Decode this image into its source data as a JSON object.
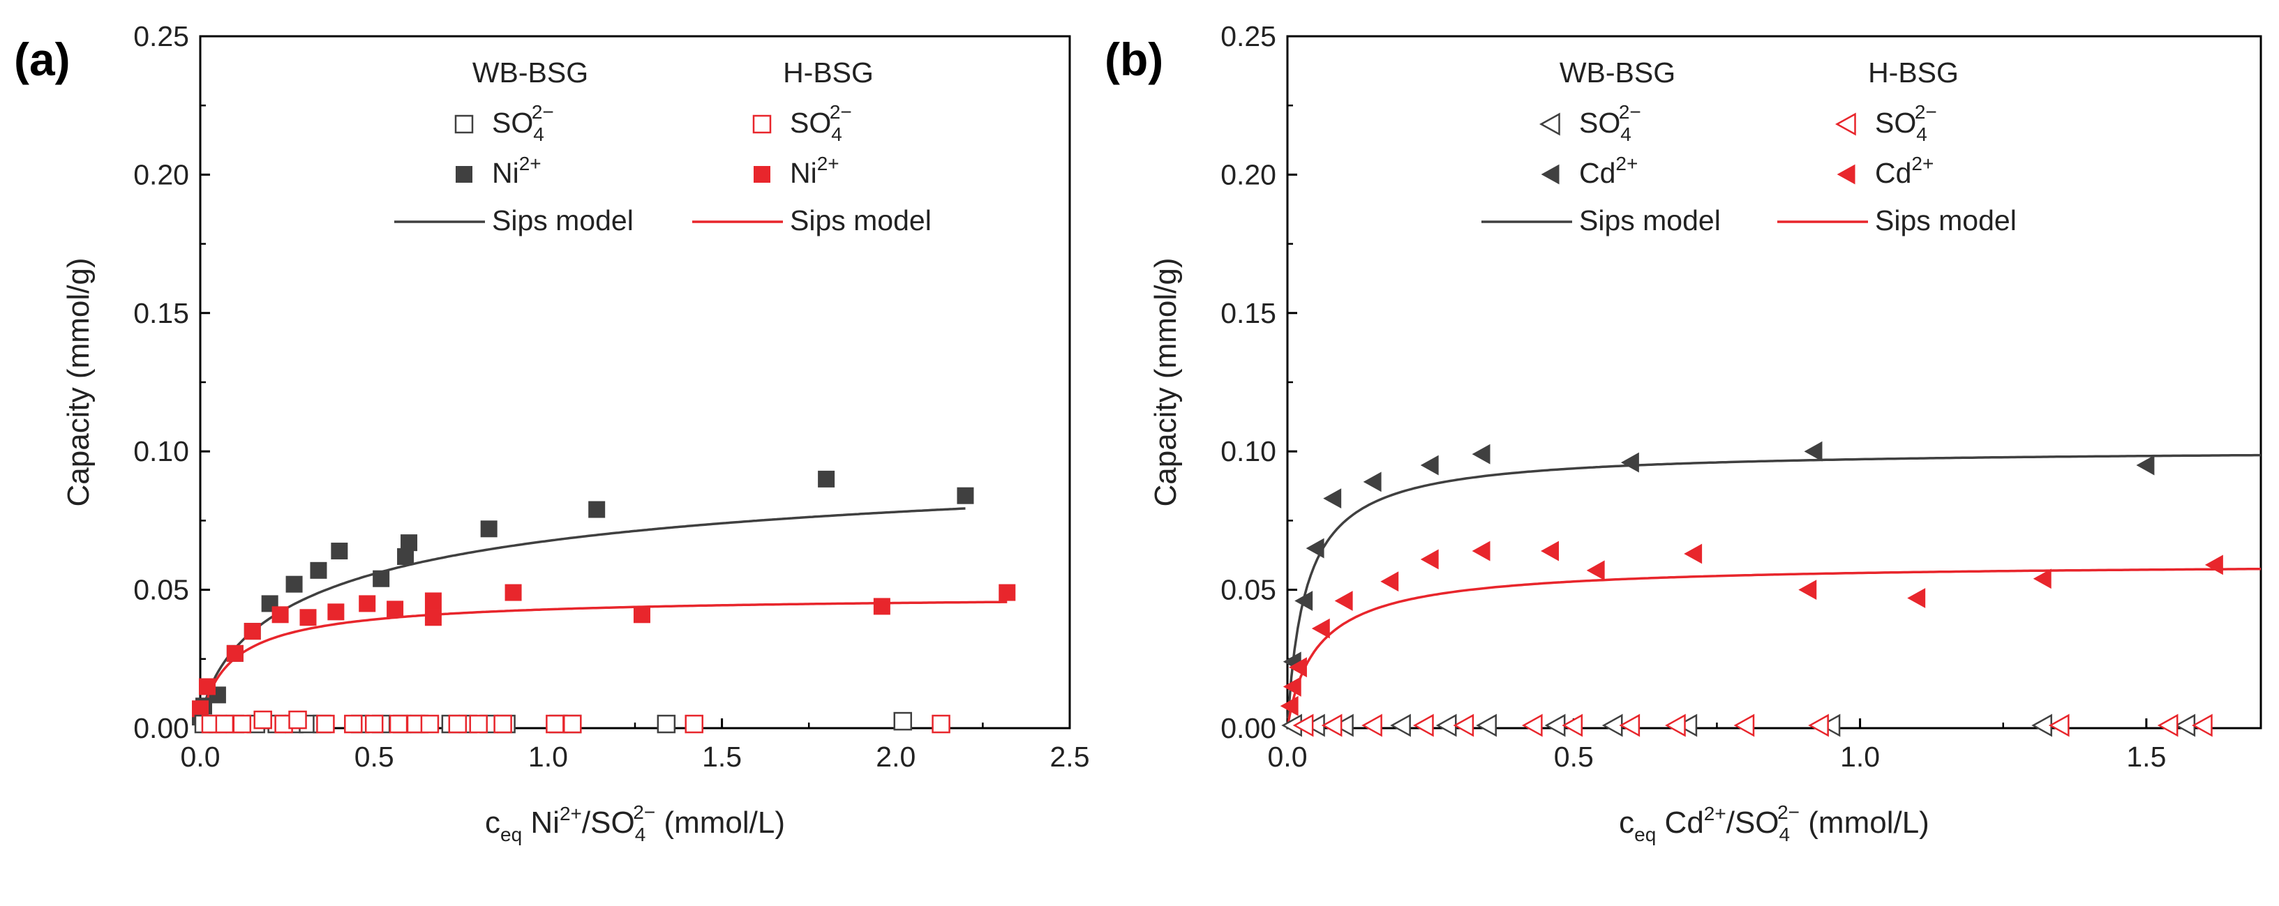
{
  "chart_data": [
    {
      "type": "scatter",
      "panel_label": "(a)",
      "xlabel": {
        "main": "c",
        "sub": "eq",
        "ion": "Ni",
        "ion_sup": "2+",
        "sep": "/SO",
        "sep_sub": "4",
        "sep_sup": "2−",
        "unit": " (mmol/L)"
      },
      "ylabel": "Capacity (mmol/g)",
      "xlim": [
        0,
        2.5
      ],
      "ylim": [
        0,
        0.25
      ],
      "xticks": [
        "0.0",
        "0.5",
        "1.0",
        "1.5",
        "2.0",
        "2.5"
      ],
      "yticks": [
        "0.00",
        "0.05",
        "0.10",
        "0.15",
        "0.20",
        "0.25"
      ],
      "legend": {
        "group1_title": "WB-BSG",
        "group2_title": "H-BSG",
        "anion_base": "SO",
        "anion_sub": "4",
        "anion_sup": "2−",
        "cation_base": "Ni",
        "cation_sup": "2+",
        "model_label": "Sips model"
      },
      "series": [
        {
          "name": "WB-BSG Ni2+",
          "marker": "square",
          "filled": true,
          "color": "#404040",
          "x": [
            0.0,
            0.01,
            0.05,
            0.1,
            0.15,
            0.2,
            0.27,
            0.34,
            0.4,
            0.52,
            0.59,
            0.6,
            0.83,
            1.14,
            1.8,
            2.2
          ],
          "y": [
            0.004,
            0.008,
            0.012,
            0.027,
            0.035,
            0.045,
            0.052,
            0.057,
            0.064,
            0.054,
            0.062,
            0.067,
            0.072,
            0.079,
            0.09,
            0.084
          ]
        },
        {
          "name": "H-BSG Ni2+",
          "marker": "square",
          "filled": true,
          "color": "#e8262c",
          "x": [
            0.0,
            0.02,
            0.1,
            0.15,
            0.23,
            0.31,
            0.39,
            0.48,
            0.56,
            0.67,
            0.67,
            0.9,
            1.27,
            1.96,
            2.32
          ],
          "y": [
            0.007,
            0.015,
            0.027,
            0.035,
            0.041,
            0.04,
            0.042,
            0.045,
            0.043,
            0.046,
            0.04,
            0.049,
            0.041,
            0.044,
            0.049
          ]
        },
        {
          "name": "WB-BSG SO4 2-",
          "marker": "square",
          "filled": false,
          "color": "#404040",
          "x": [
            0.01,
            0.05,
            0.1,
            0.16,
            0.22,
            0.27,
            0.31,
            0.35,
            0.46,
            0.52,
            0.58,
            0.63,
            0.72,
            0.77,
            0.83,
            0.88,
            1.03,
            1.07,
            1.34,
            2.02
          ],
          "y": [
            0.0015,
            0.0015,
            0.0015,
            0.0015,
            0.0015,
            0.0015,
            0.0015,
            0.0015,
            0.0015,
            0.0015,
            0.0015,
            0.0015,
            0.0015,
            0.0015,
            0.0015,
            0.0015,
            0.0015,
            0.0015,
            0.0015,
            0.0025
          ]
        },
        {
          "name": "H-BSG SO4 2-",
          "marker": "square",
          "filled": false,
          "color": "#e8262c",
          "x": [
            0.03,
            0.07,
            0.12,
            0.18,
            0.24,
            0.28,
            0.36,
            0.44,
            0.5,
            0.57,
            0.62,
            0.66,
            0.74,
            0.8,
            0.87,
            1.02,
            1.07,
            1.42,
            2.13
          ],
          "y": [
            0.0015,
            0.0015,
            0.0015,
            0.003,
            0.0015,
            0.003,
            0.0015,
            0.0015,
            0.0015,
            0.0015,
            0.0015,
            0.0015,
            0.0015,
            0.0015,
            0.0015,
            0.0015,
            0.0015,
            0.0015,
            0.0015
          ]
        }
      ],
      "fits": [
        {
          "name": "WB-BSG Sips model",
          "color": "#404040",
          "qm": 0.105,
          "K": 2.4,
          "n": 0.68,
          "xmax": 2.2
        },
        {
          "name": "H-BSG Sips model",
          "color": "#e8262c",
          "qm": 0.0485,
          "K": 11.0,
          "n": 0.85,
          "xmax": 2.32
        }
      ]
    },
    {
      "type": "scatter",
      "panel_label": "(b)",
      "xlabel": {
        "main": "c",
        "sub": "eq",
        "ion": "Cd",
        "ion_sup": "2+",
        "sep": "/SO",
        "sep_sub": "4",
        "sep_sup": "2−",
        "unit": " (mmol/L)"
      },
      "ylabel": "Capacity (mmol/g)",
      "xlim": [
        0,
        1.7
      ],
      "ylim": [
        0,
        0.25
      ],
      "xticks": [
        "0.0",
        "0.5",
        "1.0",
        "1.5"
      ],
      "yticks": [
        "0.00",
        "0.05",
        "0.10",
        "0.15",
        "0.20",
        "0.25"
      ],
      "legend": {
        "group1_title": "WB-BSG",
        "group2_title": "H-BSG",
        "anion_base": "SO",
        "anion_sub": "4",
        "anion_sup": "2−",
        "cation_base": "Cd",
        "cation_sup": "2+",
        "model_label": "Sips model"
      },
      "series": [
        {
          "name": "WB-BSG Cd2+",
          "marker": "triangle-left",
          "filled": true,
          "color": "#404040",
          "x": [
            0.01,
            0.03,
            0.05,
            0.08,
            0.15,
            0.25,
            0.34,
            0.6,
            0.92,
            1.5
          ],
          "y": [
            0.024,
            0.046,
            0.065,
            0.083,
            0.089,
            0.095,
            0.099,
            0.096,
            0.1,
            0.095
          ]
        },
        {
          "name": "H-BSG Cd2+",
          "marker": "triangle-left",
          "filled": true,
          "color": "#e8262c",
          "x": [
            0.005,
            0.01,
            0.02,
            0.06,
            0.1,
            0.18,
            0.25,
            0.34,
            0.46,
            0.54,
            0.71,
            0.91,
            1.1,
            1.32,
            1.62
          ],
          "y": [
            0.008,
            0.015,
            0.022,
            0.036,
            0.046,
            0.053,
            0.061,
            0.064,
            0.064,
            0.057,
            0.063,
            0.05,
            0.047,
            0.054,
            0.059
          ]
        },
        {
          "name": "WB-BSG SO4 2-",
          "marker": "triangle-left",
          "filled": false,
          "color": "#404040",
          "x": [
            0.01,
            0.05,
            0.1,
            0.2,
            0.28,
            0.35,
            0.47,
            0.57,
            0.7,
            0.95,
            1.32,
            1.57
          ],
          "y": [
            0.001,
            0.001,
            0.001,
            0.001,
            0.001,
            0.001,
            0.001,
            0.001,
            0.001,
            0.001,
            0.001,
            0.001
          ]
        },
        {
          "name": "H-BSG SO4 2-",
          "marker": "triangle-left",
          "filled": false,
          "color": "#e8262c",
          "x": [
            0.03,
            0.08,
            0.15,
            0.24,
            0.31,
            0.43,
            0.5,
            0.6,
            0.68,
            0.8,
            0.93,
            1.35,
            1.54,
            1.6
          ],
          "y": [
            0.001,
            0.001,
            0.001,
            0.001,
            0.001,
            0.001,
            0.001,
            0.001,
            0.001,
            0.001,
            0.001,
            0.001,
            0.001,
            0.001
          ]
        }
      ],
      "fits": [
        {
          "name": "WB-BSG Sips model",
          "color": "#404040",
          "qm": 0.101,
          "K": 30.0,
          "n": 0.95,
          "xmax": 1.7
        },
        {
          "name": "H-BSG Sips model",
          "color": "#e8262c",
          "qm": 0.06,
          "K": 18.0,
          "n": 0.92,
          "xmax": 1.7
        }
      ]
    }
  ]
}
